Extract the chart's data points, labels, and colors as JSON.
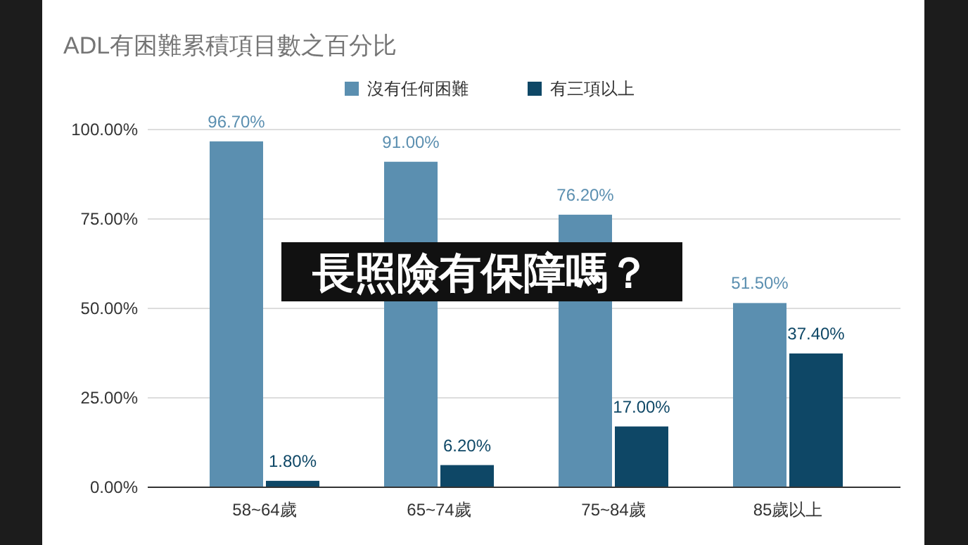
{
  "chart_data": {
    "type": "bar",
    "title": "ADL有困難累積項目數之百分比",
    "categories": [
      "58~64歲",
      "65~74歲",
      "75~84歲",
      "85歲以上"
    ],
    "series": [
      {
        "name": "沒有任何困難",
        "color": "#5b8fb0",
        "values": [
          96.7,
          91.0,
          76.2,
          51.5
        ],
        "value_labels": [
          "96.70%",
          "91.00%",
          "76.20%",
          "51.50%"
        ]
      },
      {
        "name": "有三項以上",
        "color": "#0e4766",
        "values": [
          1.8,
          6.2,
          17.0,
          37.4
        ],
        "value_labels": [
          "1.80%",
          "6.20%",
          "17.00%",
          "37.40%"
        ]
      }
    ],
    "ylim": [
      0,
      100
    ],
    "yticks": [
      {
        "value": 0,
        "label": "0.00%"
      },
      {
        "value": 25,
        "label": "25.00%"
      },
      {
        "value": 50,
        "label": "50.00%"
      },
      {
        "value": 75,
        "label": "75.00%"
      },
      {
        "value": 100,
        "label": "100.00%"
      }
    ],
    "grid": "y",
    "legend": "top",
    "annotations": [
      "長照險有保障嗎？"
    ]
  }
}
